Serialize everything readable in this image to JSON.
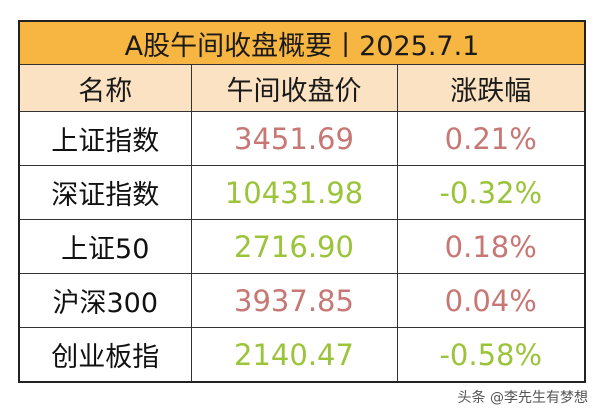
{
  "title": "A股午间收盘概要丨2025.7.1",
  "headers": [
    "名称",
    "午间收盘价",
    "涨跌幅"
  ],
  "rows": [
    {
      "name": "上证指数",
      "price": "3451.69",
      "change": "0.21%",
      "trend": "up"
    },
    {
      "name": "深证指数",
      "price": "10431.98",
      "change": "-0.32%",
      "trend": "down"
    },
    {
      "name": "上证50",
      "price": "2716.90",
      "change": "0.18%",
      "trend": "mixed"
    },
    {
      "name": "沪深300",
      "price": "3937.85",
      "change": "0.04%",
      "trend": "up"
    },
    {
      "name": "创业板指",
      "price": "2140.47",
      "change": "-0.58%",
      "trend": "down"
    }
  ],
  "colors": {
    "title_bg": "#f7b641",
    "header_bg": "#fbe2c2",
    "up": "#c77875",
    "down": "#9bc43a"
  },
  "watermark": "头条 @李先生有梦想"
}
